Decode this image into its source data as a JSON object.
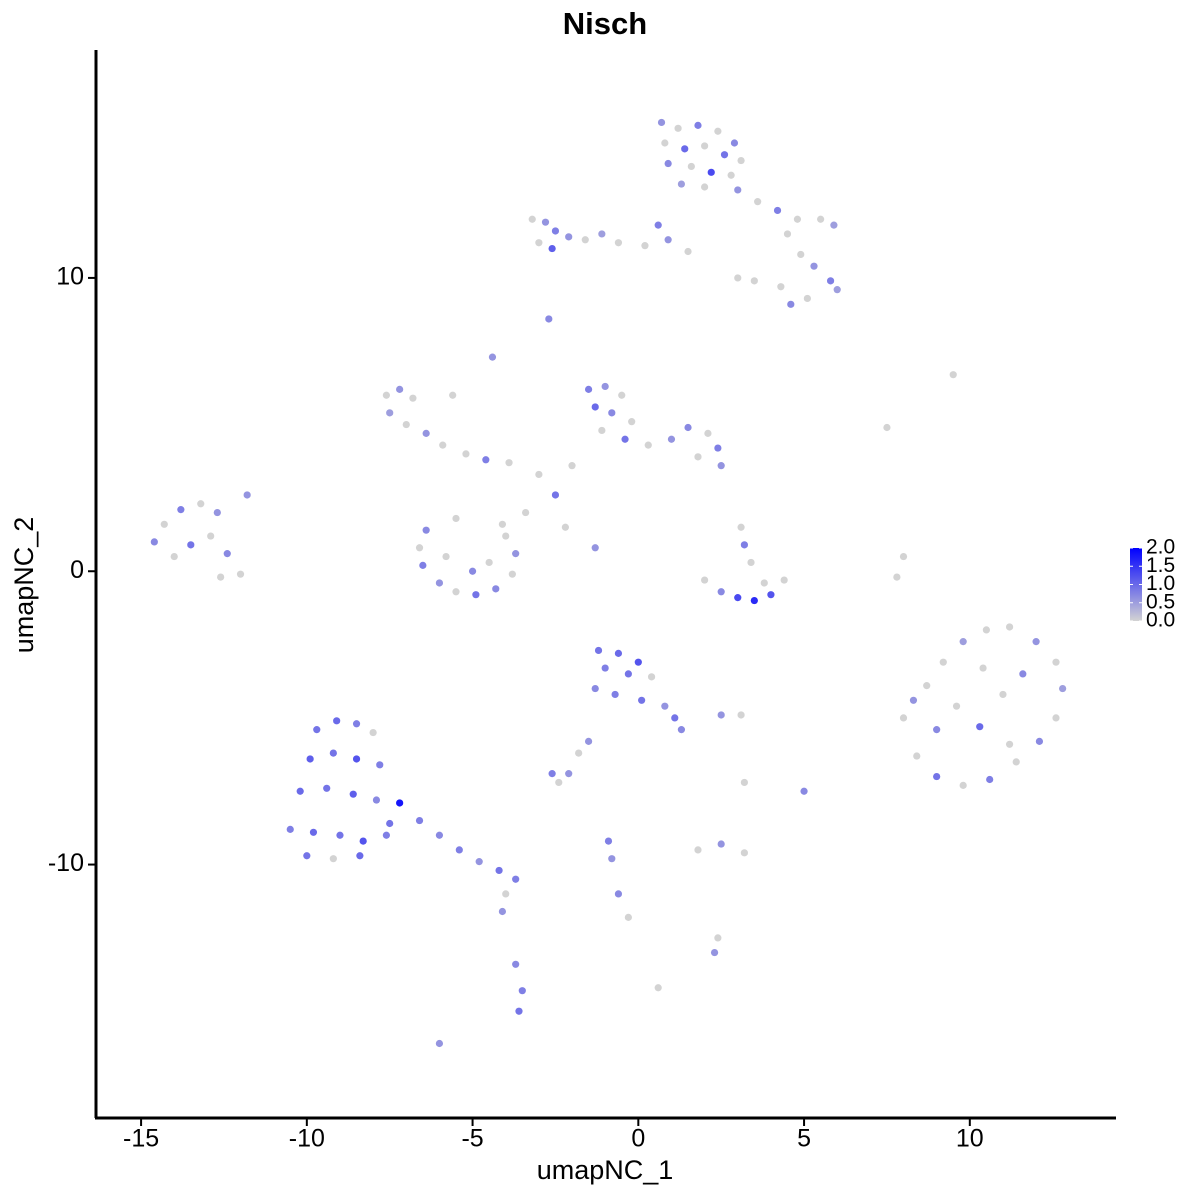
{
  "chart_data": {
    "type": "scatter",
    "title": "Nisch",
    "x_label": "umapNC_1",
    "y_label": "umapNC_2",
    "xlim": [
      -16.36,
      14.38
    ],
    "ylim": [
      -18.64,
      17.77
    ],
    "xticks": [
      -15,
      -10,
      -5,
      0,
      5,
      10
    ],
    "yticks": [
      -10,
      0,
      10
    ],
    "colorbar": {
      "lim": [
        0,
        2
      ],
      "low_color": "#d3d3d3",
      "high_color": "#0000ff",
      "ticks": [
        {
          "value": 0,
          "label": "0.0"
        },
        {
          "value": 0.5,
          "label": "0.5"
        },
        {
          "value": 1,
          "label": "1.0"
        },
        {
          "value": 1.5,
          "label": "1.5"
        },
        {
          "value": 2,
          "label": "2.0"
        }
      ]
    },
    "x": [
      0.7,
      1.2,
      1.8,
      2.4,
      2.9,
      0.8,
      1.4,
      2.0,
      2.6,
      3.1,
      0.9,
      1.6,
      2.2,
      2.8,
      1.3,
      2.0,
      3.0,
      3.6,
      4.2,
      4.8,
      5.5,
      5.9,
      4.5,
      4.9,
      5.3,
      5.8,
      6.0,
      5.1,
      4.6,
      4.3,
      3.0,
      3.5,
      -3.2,
      -2.8,
      -2.5,
      -3.0,
      -2.6,
      -2.1,
      -1.6,
      -1.1,
      -0.6,
      0.2,
      0.9,
      1.5,
      -2.7,
      0.6,
      -7.6,
      -7.2,
      -6.8,
      -7.5,
      -7.0,
      -6.4,
      -5.9,
      -5.2,
      -4.6,
      -3.9,
      -5.6,
      -4.4,
      -1.5,
      -1.0,
      -0.5,
      -1.3,
      -0.8,
      -0.2,
      -1.1,
      -0.4,
      0.3,
      1.0,
      1.5,
      2.1,
      2.4,
      1.8,
      2.5,
      -2.0,
      -3.0,
      -2.5,
      -3.4,
      -4.1,
      -2.2,
      -1.3,
      -6.4,
      -6.6,
      -6.5,
      -6.0,
      -5.5,
      -4.9,
      -4.3,
      -3.8,
      -3.7,
      -4.0,
      -5.8,
      -5.0,
      -4.5,
      -5.5,
      -14.6,
      -14.3,
      -13.8,
      -13.2,
      -12.7,
      -14.0,
      -13.5,
      -12.9,
      -12.4,
      -12.0,
      -12.6,
      -11.8,
      2.0,
      2.5,
      3.0,
      3.5,
      4.0,
      4.4,
      3.8,
      3.2,
      3.1,
      3.4,
      8.0,
      8.3,
      8.7,
      9.2,
      9.8,
      10.5,
      11.2,
      12.0,
      12.6,
      12.8,
      12.6,
      12.1,
      11.4,
      10.6,
      9.8,
      9.0,
      8.4,
      9.0,
      9.6,
      10.3,
      11.0,
      11.6,
      10.4,
      11.2,
      -9.7,
      -9.1,
      -8.5,
      -8.0,
      -9.9,
      -9.2,
      -8.5,
      -7.8,
      -10.2,
      -9.4,
      -8.6,
      -7.9,
      -10.5,
      -9.8,
      -9.0,
      -8.3,
      -7.6,
      -10.0,
      -9.2,
      -8.4,
      -7.2,
      -7.5,
      -6.6,
      -6.0,
      -5.4,
      -4.8,
      -4.2,
      -3.7,
      -4.0,
      -4.1,
      -3.7,
      -3.5,
      -3.6,
      -6.0,
      -1.2,
      -0.6,
      0.0,
      -1.0,
      -0.3,
      0.4,
      -1.3,
      -0.7,
      0.1,
      0.8,
      1.1,
      1.3,
      -1.5,
      -1.8,
      -2.6,
      -2.1,
      -2.4,
      -0.9,
      -0.8,
      -0.6,
      -0.3,
      0.6,
      2.4,
      2.3,
      1.8,
      2.5,
      3.2,
      5.0,
      2.5,
      3.1,
      7.8,
      8.0,
      7.5,
      9.5,
      3.2
    ],
    "y": [
      15.3,
      15.1,
      15.2,
      15.0,
      14.6,
      14.6,
      14.4,
      14.5,
      14.2,
      14.0,
      13.9,
      13.8,
      13.6,
      13.5,
      13.2,
      13.1,
      13.0,
      12.6,
      12.3,
      12.0,
      12.0,
      11.8,
      11.5,
      10.8,
      10.4,
      9.9,
      9.6,
      9.3,
      9.1,
      9.7,
      10.0,
      9.9,
      12.0,
      11.9,
      11.6,
      11.2,
      11.0,
      11.4,
      11.3,
      11.5,
      11.2,
      11.1,
      11.3,
      10.9,
      8.6,
      11.8,
      6.0,
      6.2,
      5.9,
      5.4,
      5.0,
      4.7,
      4.3,
      4.0,
      3.8,
      3.7,
      6.0,
      7.3,
      6.2,
      6.3,
      6.0,
      5.6,
      5.4,
      5.1,
      4.8,
      4.5,
      4.3,
      4.5,
      4.9,
      4.7,
      4.2,
      3.9,
      3.6,
      3.6,
      3.3,
      2.6,
      2.0,
      1.6,
      1.5,
      0.8,
      1.4,
      0.8,
      0.2,
      -0.4,
      -0.7,
      -0.8,
      -0.6,
      -0.1,
      0.6,
      1.2,
      0.5,
      0.0,
      0.3,
      1.8,
      1.0,
      1.6,
      2.1,
      2.3,
      2.0,
      0.5,
      0.9,
      1.2,
      0.6,
      -0.1,
      -0.2,
      2.6,
      -0.3,
      -0.7,
      -0.9,
      -1.0,
      -0.8,
      -0.3,
      -0.4,
      0.9,
      1.5,
      0.3,
      -5.0,
      -4.4,
      -3.9,
      -3.1,
      -2.4,
      -2.0,
      -1.9,
      -2.4,
      -3.1,
      -4.0,
      -5.0,
      -5.8,
      -6.5,
      -7.1,
      -7.3,
      -7.0,
      -6.3,
      -5.4,
      -4.6,
      -5.3,
      -4.2,
      -3.5,
      -3.3,
      -5.9,
      -5.4,
      -5.1,
      -5.2,
      -5.5,
      -6.4,
      -6.2,
      -6.4,
      -6.6,
      -7.5,
      -7.4,
      -7.6,
      -7.8,
      -8.8,
      -8.9,
      -9.0,
      -9.2,
      -9.0,
      -9.7,
      -9.8,
      -9.7,
      -7.9,
      -8.6,
      -8.5,
      -9.0,
      -9.5,
      -9.9,
      -10.2,
      -10.5,
      -11.0,
      -11.6,
      -13.4,
      -14.3,
      -15.0,
      -16.1,
      -2.7,
      -2.8,
      -3.1,
      -3.3,
      -3.5,
      -3.6,
      -4.0,
      -4.2,
      -4.4,
      -4.6,
      -5.0,
      -5.4,
      -5.8,
      -6.2,
      -6.9,
      -6.9,
      -7.2,
      -9.2,
      -9.8,
      -11.0,
      -11.8,
      -14.2,
      -12.5,
      -13.0,
      -9.5,
      -9.3,
      -9.6,
      -7.5,
      -4.9,
      -4.9,
      -0.2,
      0.5,
      4.9,
      6.7,
      -7.2
    ],
    "values": [
      0.6,
      0,
      0.8,
      0,
      0.7,
      0,
      1.0,
      0,
      0.9,
      0,
      0.7,
      0,
      1.3,
      0,
      0.5,
      0,
      0.6,
      0,
      0.8,
      0,
      0,
      0.5,
      0,
      0,
      0.6,
      0.8,
      0.5,
      0,
      0.7,
      0,
      0,
      0,
      0,
      0.6,
      0.8,
      0,
      1.1,
      0.6,
      0,
      0.5,
      0,
      0,
      0.6,
      0,
      0.7,
      0.8,
      0,
      0.6,
      0,
      0.5,
      0,
      0.6,
      0,
      0,
      0.8,
      0,
      0,
      0.6,
      0.8,
      0.6,
      0,
      1.0,
      0.7,
      0,
      0,
      0.9,
      0,
      0.6,
      0.7,
      0,
      0.8,
      0,
      0.6,
      0,
      0,
      0.9,
      0,
      0,
      0,
      0.6,
      0.7,
      0,
      0.8,
      0.6,
      0,
      0.9,
      0.7,
      0,
      0.6,
      0,
      0,
      0.7,
      0,
      0,
      0.7,
      0,
      0.8,
      0,
      0.6,
      0,
      0.9,
      0,
      0.7,
      0,
      0,
      0.6,
      0,
      0.7,
      1.3,
      1.6,
      1.2,
      0,
      0,
      0.8,
      0,
      0,
      0,
      0.6,
      0,
      0,
      0.5,
      0,
      0,
      0.6,
      0,
      0.5,
      0,
      0.7,
      0,
      0.8,
      0,
      0.9,
      0,
      0.7,
      0,
      1.0,
      0,
      0.7,
      0,
      0,
      0.9,
      1.0,
      0.8,
      0,
      1.1,
      0.9,
      1.2,
      0.8,
      1.0,
      0.9,
      1.1,
      0.7,
      0.8,
      1.0,
      0.9,
      1.2,
      0.8,
      0.9,
      0,
      1.0,
      1.8,
      0.9,
      0.8,
      0.7,
      0.8,
      0.6,
      0.9,
      0.8,
      0,
      0.6,
      0.7,
      0.8,
      0.9,
      0.6,
      0.9,
      1.0,
      1.2,
      0.8,
      0.9,
      0,
      0.7,
      0.8,
      0.9,
      0.6,
      0.9,
      0.7,
      0.6,
      0,
      0.8,
      0.6,
      0,
      0.8,
      0.6,
      0.7,
      0,
      0,
      0,
      0.6,
      0,
      0.6,
      0,
      0.7,
      0.6,
      0,
      0,
      0,
      0,
      0,
      0
    ]
  }
}
